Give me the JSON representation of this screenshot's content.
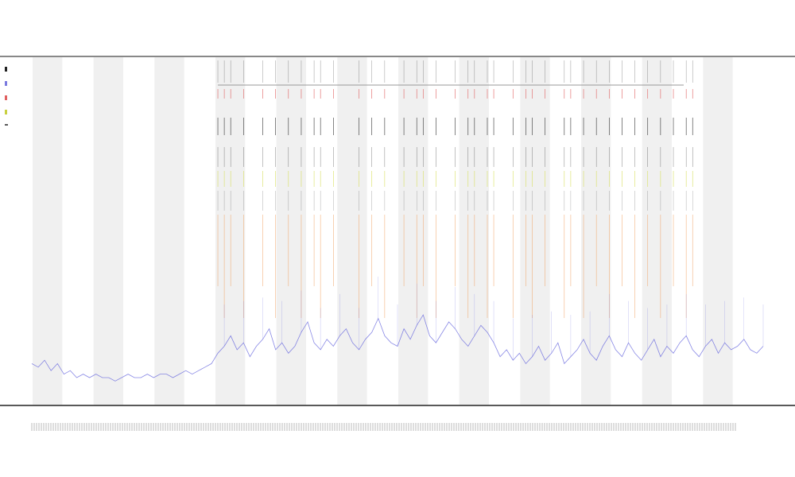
{
  "chart_data": {
    "type": "line",
    "title": "",
    "xlabel": "",
    "ylabel": "",
    "grid": false,
    "legend_placement": "top-left",
    "colors": {
      "line": "#6a6adf",
      "band": "#f0f0f0",
      "event_orange": "#f0a060",
      "event_red": "#e06060",
      "event_yellow": "#d8e060",
      "event_black": "#333333"
    },
    "values": [
      12,
      11,
      13,
      10,
      12,
      9,
      10,
      8,
      9,
      8,
      9,
      8,
      8,
      7,
      8,
      9,
      8,
      8,
      9,
      8,
      9,
      9,
      8,
      9,
      10,
      9,
      10,
      11,
      12,
      15,
      17,
      20,
      16,
      18,
      14,
      17,
      19,
      22,
      16,
      18,
      15,
      17,
      21,
      24,
      18,
      16,
      19,
      17,
      20,
      22,
      18,
      16,
      19,
      21,
      25,
      20,
      18,
      17,
      22,
      19,
      23,
      26,
      20,
      18,
      21,
      24,
      22,
      19,
      17,
      20,
      23,
      21,
      18,
      14,
      16,
      13,
      15,
      12,
      14,
      17,
      13,
      15,
      18,
      12,
      14,
      16,
      19,
      15,
      13,
      17,
      20,
      16,
      14,
      18,
      15,
      13,
      16,
      19,
      14,
      17,
      15,
      18,
      20,
      16,
      14,
      17,
      19,
      15,
      18,
      16,
      17,
      19,
      16,
      15,
      17
    ],
    "ylim": [
      0,
      100
    ],
    "bands": 12,
    "events": [
      29,
      30,
      31,
      33,
      36,
      38,
      40,
      42,
      44,
      45,
      47,
      51,
      53,
      55,
      58,
      60,
      61,
      63,
      66,
      68,
      69,
      71,
      72,
      75,
      77,
      78,
      80,
      83,
      84,
      86,
      88,
      90,
      92,
      94,
      96,
      98,
      100,
      102,
      103
    ]
  }
}
